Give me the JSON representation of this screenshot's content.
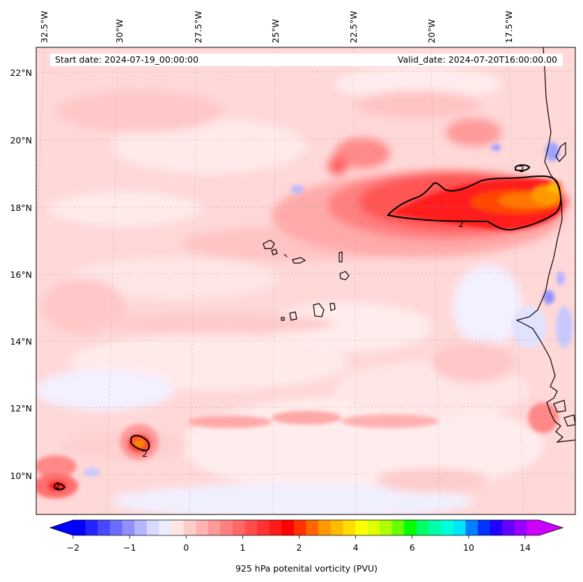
{
  "header": {
    "start_label": "Start date:",
    "start_value": "2024-07-19_00:00:00",
    "valid_label": "Valid_date:",
    "valid_value": "2024-07-20T16:00:00.00"
  },
  "map": {
    "lon_labels": [
      "32.5°W",
      "30°W",
      "27.5°W",
      "25°W",
      "22.5°W",
      "20°W",
      "17.5°W"
    ],
    "lat_labels": [
      "22°N",
      "20°N",
      "18°N",
      "16°N",
      "14°N",
      "12°N",
      "10°N"
    ],
    "contour_label": "2"
  },
  "colorbar": {
    "title": "925 hPa potenital vorticity (PVU)",
    "tick_labels": [
      "−2",
      "−1",
      "0",
      "1",
      "2",
      "4",
      "6",
      "10",
      "14"
    ],
    "colors": [
      "#0000ff",
      "#2424ff",
      "#4848ff",
      "#6c6cff",
      "#9090ff",
      "#b4b4ff",
      "#d8d8ff",
      "#ececff",
      "#ffe6e6",
      "#ffcccc",
      "#ffb3b3",
      "#ff9999",
      "#ff8080",
      "#ff6666",
      "#ff4d4d",
      "#ff3333",
      "#ff1a1a",
      "#ff0000",
      "#ff3300",
      "#ff6600",
      "#ff9900",
      "#ffbb00",
      "#ffdd00",
      "#ffff00",
      "#ddff00",
      "#aaff00",
      "#66ff00",
      "#00ff00",
      "#00ff66",
      "#00ffaa",
      "#00ffdd",
      "#00e5ff",
      "#0080ff",
      "#0033ff",
      "#2200ff",
      "#6600ff",
      "#9900ff",
      "#cc00ff"
    ],
    "under_color": "#0000ff",
    "over_color": "#cc00ff"
  }
}
